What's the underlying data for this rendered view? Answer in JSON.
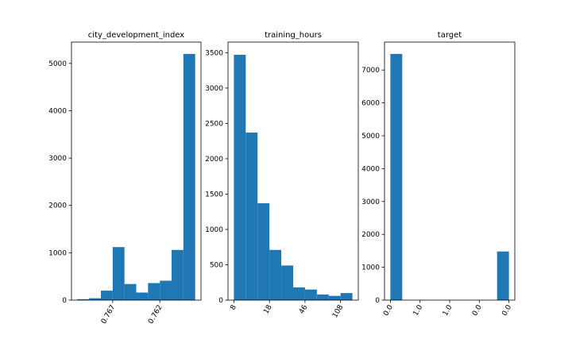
{
  "chart_data": [
    {
      "type": "bar",
      "title": "city_development_index",
      "bar_color": "#1f77b4",
      "ylim": [
        0,
        5450
      ],
      "yticks": [
        0,
        1000,
        2000,
        3000,
        4000,
        5000
      ],
      "bins": 10,
      "values": [
        20,
        40,
        200,
        1120,
        340,
        160,
        360,
        410,
        1060,
        5200
      ],
      "xticks": [
        {
          "label": "0.767",
          "bin_position": 3.0
        },
        {
          "label": "0.762",
          "bin_position": 7.0
        }
      ]
    },
    {
      "type": "bar",
      "title": "training_hours",
      "bar_color": "#1f77b4",
      "ylim": [
        0,
        3650
      ],
      "yticks": [
        0,
        500,
        1000,
        1500,
        2000,
        2500,
        3000,
        3500
      ],
      "bins": 10,
      "values": [
        3470,
        2370,
        1370,
        710,
        490,
        180,
        150,
        80,
        60,
        100
      ],
      "xticks": [
        {
          "label": "8",
          "bin_position": 0.0
        },
        {
          "label": "18",
          "bin_position": 3.0
        },
        {
          "label": "46",
          "bin_position": 6.0
        },
        {
          "label": "108",
          "bin_position": 9.0
        }
      ]
    },
    {
      "type": "bar",
      "title": "target",
      "bar_color": "#1f77b4",
      "ylim": [
        0,
        7850
      ],
      "yticks": [
        0,
        1000,
        2000,
        3000,
        4000,
        5000,
        6000,
        7000
      ],
      "bins": 10,
      "values": [
        7490,
        0,
        0,
        0,
        0,
        0,
        0,
        0,
        0,
        1480
      ],
      "xticks": [
        {
          "label": "0.0",
          "bin_position": 0.0
        },
        {
          "label": "1.0",
          "bin_position": 2.5
        },
        {
          "label": "1.0",
          "bin_position": 5.0
        },
        {
          "label": "0.0",
          "bin_position": 7.5
        },
        {
          "label": "0.0",
          "bin_position": 10.0
        }
      ]
    }
  ]
}
